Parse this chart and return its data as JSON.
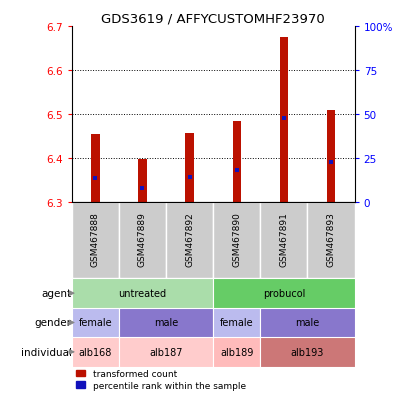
{
  "title": "GDS3619 / AFFYCUSTOMHF23970",
  "samples": [
    "GSM467888",
    "GSM467889",
    "GSM467892",
    "GSM467890",
    "GSM467891",
    "GSM467893"
  ],
  "bar_bottoms": [
    6.3,
    6.3,
    6.3,
    6.3,
    6.3,
    6.3
  ],
  "bar_tops": [
    6.455,
    6.398,
    6.457,
    6.485,
    6.675,
    6.51
  ],
  "blue_positions": [
    6.355,
    6.333,
    6.358,
    6.372,
    6.492,
    6.392
  ],
  "ylim": [
    6.3,
    6.7
  ],
  "yticks_left": [
    6.3,
    6.4,
    6.5,
    6.6,
    6.7
  ],
  "yticks_right": [
    0,
    25,
    50,
    75,
    100
  ],
  "ytick_right_labels": [
    "0",
    "25",
    "50",
    "75",
    "100%"
  ],
  "bar_color": "#bb1100",
  "blue_color": "#1111bb",
  "agent_row": {
    "groups": [
      {
        "label": "untreated",
        "start": 0,
        "end": 3,
        "color": "#aaddaa"
      },
      {
        "label": "probucol",
        "start": 3,
        "end": 6,
        "color": "#66cc66"
      }
    ]
  },
  "gender_row": {
    "groups": [
      {
        "label": "female",
        "start": 0,
        "end": 1,
        "color": "#bbbbee"
      },
      {
        "label": "male",
        "start": 1,
        "end": 3,
        "color": "#8877cc"
      },
      {
        "label": "female",
        "start": 3,
        "end": 4,
        "color": "#bbbbee"
      },
      {
        "label": "male",
        "start": 4,
        "end": 6,
        "color": "#8877cc"
      }
    ]
  },
  "individual_row": {
    "groups": [
      {
        "label": "alb168",
        "start": 0,
        "end": 1,
        "color": "#ffcccc"
      },
      {
        "label": "alb187",
        "start": 1,
        "end": 3,
        "color": "#ffcccc"
      },
      {
        "label": "alb189",
        "start": 3,
        "end": 4,
        "color": "#ffbbbb"
      },
      {
        "label": "alb193",
        "start": 4,
        "end": 6,
        "color": "#cc7777"
      }
    ]
  },
  "row_labels": [
    "agent",
    "gender",
    "individual"
  ],
  "legend_red": "transformed count",
  "legend_blue": "percentile rank within the sample",
  "bar_width": 0.18,
  "sample_box_color": "#cccccc",
  "left_label_color": "#444444"
}
